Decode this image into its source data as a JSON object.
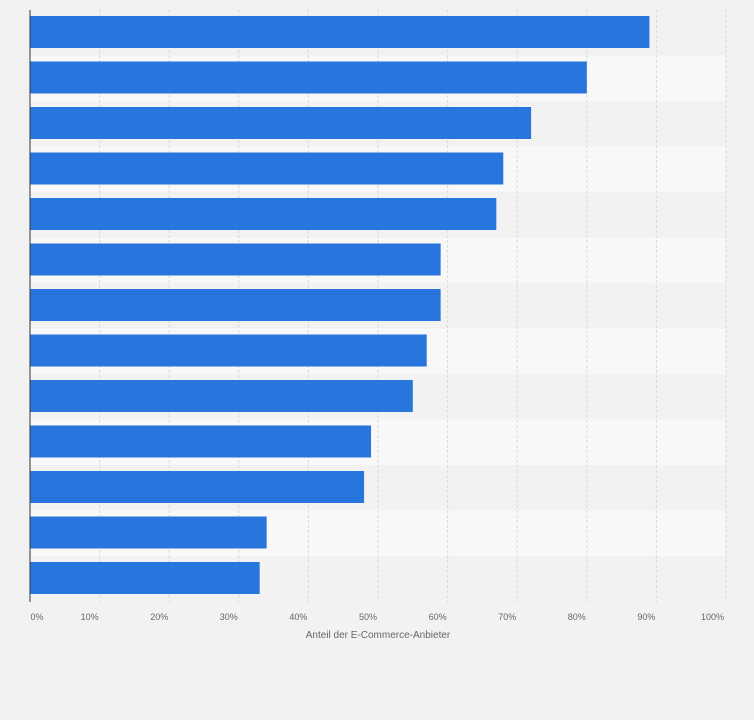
{
  "chart_data": {
    "type": "bar",
    "orientation": "horizontal",
    "categories": [
      "",
      "",
      "",
      "",
      "",
      "",
      "",
      "",
      "",
      "",
      "",
      "",
      ""
    ],
    "values": [
      89,
      80,
      72,
      68,
      67,
      59,
      59,
      57,
      55,
      49,
      48,
      34,
      33
    ],
    "x_ticks": [
      "0%",
      "10%",
      "20%",
      "30%",
      "40%",
      "50%",
      "60%",
      "70%",
      "80%",
      "90%",
      "100%"
    ],
    "xlabel": "Anteil der E-Commerce-Anbieter",
    "xlim": [
      0,
      100
    ],
    "grid": true,
    "legend": "none",
    "bar_color": "#2876dd",
    "band_colors": [
      "#f2f2f2",
      "#f8f8f8"
    ]
  }
}
